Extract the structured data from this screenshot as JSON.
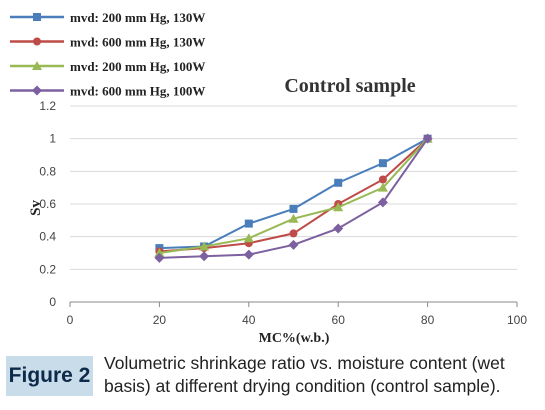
{
  "figure": {
    "label": "Figure 2",
    "caption": "Volumetric shrinkage ratio vs. moisture content (wet basis) at different drying condition (control sample)."
  },
  "chart_data": {
    "type": "line",
    "title": "Control sample",
    "xlabel": "MC%(w.b.)",
    "ylabel": "Sv",
    "xlim": [
      0,
      100
    ],
    "ylim": [
      0,
      1.2
    ],
    "xticks": [
      0,
      20,
      40,
      60,
      80,
      100
    ],
    "yticks": [
      0,
      0.2,
      0.4,
      0.6,
      0.8,
      1,
      1.2
    ],
    "grid": "horizontal",
    "legend_position": "top-left",
    "series": [
      {
        "name": "mvd: 200 mm Hg, 130W",
        "color": "#4a7ebb",
        "marker": "square",
        "x": [
          20,
          30,
          40,
          50,
          60,
          70,
          80
        ],
        "y": [
          0.33,
          0.34,
          0.48,
          0.57,
          0.73,
          0.85,
          1.0
        ]
      },
      {
        "name": "mvd: 600 mm Hg, 130W",
        "color": "#be4b48",
        "marker": "circle",
        "x": [
          20,
          30,
          40,
          50,
          60,
          70,
          80
        ],
        "y": [
          0.31,
          0.33,
          0.36,
          0.42,
          0.6,
          0.75,
          1.0
        ]
      },
      {
        "name": "mvd: 200 mm Hg, 100W",
        "color": "#98b954",
        "marker": "triangle",
        "x": [
          20,
          30,
          40,
          50,
          60,
          70,
          80
        ],
        "y": [
          0.3,
          0.34,
          0.39,
          0.51,
          0.58,
          0.7,
          1.0
        ]
      },
      {
        "name": "mvd: 600 mm Hg, 100W",
        "color": "#7d60a0",
        "marker": "diamond",
        "x": [
          20,
          30,
          40,
          50,
          60,
          70,
          80
        ],
        "y": [
          0.27,
          0.28,
          0.29,
          0.35,
          0.45,
          0.61,
          1.0
        ]
      }
    ]
  }
}
